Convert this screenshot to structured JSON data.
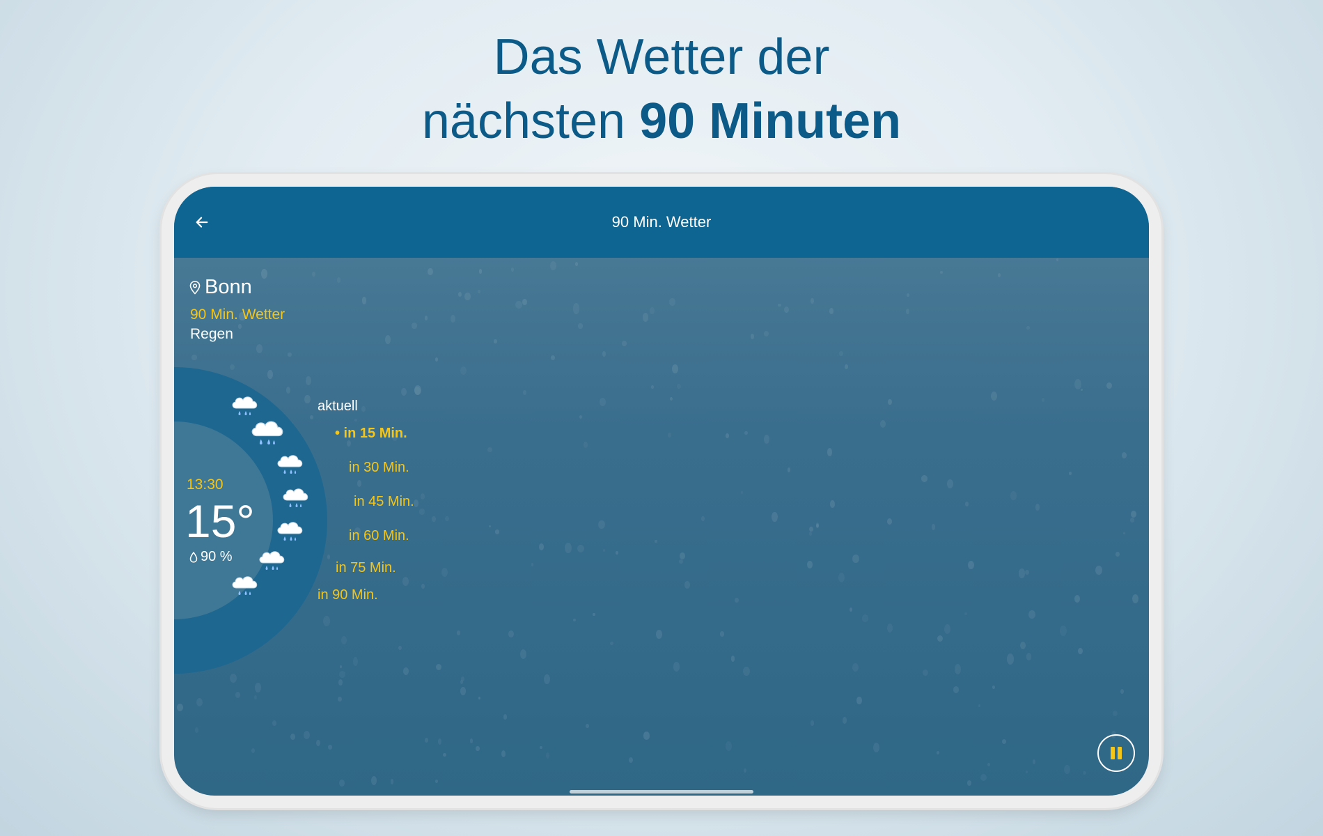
{
  "headline": {
    "line1": "Das Wetter der",
    "line2_regular": "nächsten ",
    "line2_bold": "90 Minuten"
  },
  "appbar": {
    "title": "90 Min. Wetter",
    "back_icon": "arrow-left-icon"
  },
  "location": {
    "icon": "location-pin-icon",
    "name": "Bonn",
    "subtitle": "90 Min. Wetter",
    "condition": "Regen"
  },
  "current": {
    "time": "13:30",
    "temperature": "15°",
    "humidity_icon": "water-drop-icon",
    "humidity": "90 %"
  },
  "timeline": [
    {
      "label": "aktuell",
      "icon": "cloud-rain-icon",
      "style": "white"
    },
    {
      "label": "• in 15 Min.",
      "icon": "cloud-rain-icon",
      "style": "selected"
    },
    {
      "label": "in 30 Min.",
      "icon": "cloud-rain-icon",
      "style": "normal"
    },
    {
      "label": "in 45 Min.",
      "icon": "cloud-rain-icon",
      "style": "normal"
    },
    {
      "label": "in 60 Min.",
      "icon": "cloud-rain-icon",
      "style": "normal"
    },
    {
      "label": "in 75 Min.",
      "icon": "cloud-rain-icon",
      "style": "normal"
    },
    {
      "label": "in 90 Min.",
      "icon": "cloud-rain-icon",
      "style": "normal"
    }
  ],
  "controls": {
    "pause_icon": "pause-icon"
  },
  "colors": {
    "headline": "#0c5a87",
    "appbar": "#0f6591",
    "accent": "#f5c518",
    "dial": "#1d6790"
  }
}
